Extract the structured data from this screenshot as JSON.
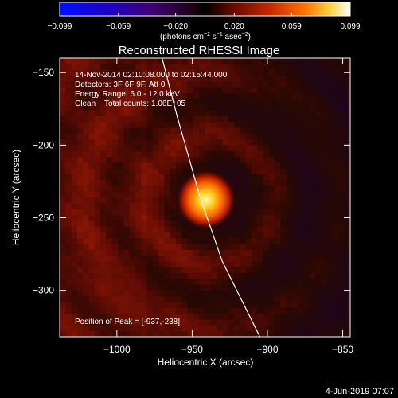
{
  "chart_data": {
    "type": "heatmap",
    "title": "Reconstructed RHESSI Image",
    "colorbar": {
      "ticks": [
        "−0.099",
        "−0.059",
        "−0.020",
        "0.020",
        "0.059",
        "0.099"
      ],
      "tick_values": [
        -0.099,
        -0.059,
        -0.02,
        0.02,
        0.059,
        0.099
      ],
      "range": [
        -0.099,
        0.099
      ],
      "unit_parts": [
        "(photons cm",
        "−2",
        " s",
        "−1",
        " asec",
        "−2",
        ")"
      ]
    },
    "xlabel": "Heliocentric X (arcsec)",
    "ylabel": "Heliocentric Y (arcsec)",
    "xlim": [
      -1038,
      -845
    ],
    "ylim": [
      -332,
      -140
    ],
    "x_ticks": [
      -1000,
      -950,
      -900,
      -850
    ],
    "y_ticks": [
      -150,
      -200,
      -250,
      -300
    ],
    "x_tick_labels": [
      "−1000",
      "−950",
      "−900",
      "−850"
    ],
    "y_tick_labels": [
      "−150",
      "−200",
      "−250",
      "−300"
    ],
    "annotation_lines": [
      "14-Nov-2014 02:10:08.000 to 02:15:44.000",
      "Detectors: 3F 6F 9F, Att 0",
      "Energy Range: 6.0 - 12.0 keV",
      "Clean    Total counts: 1.06E+05"
    ],
    "peak_label": "Position of Peak = [-937,-238]",
    "peak": {
      "x": -937,
      "y": -238
    },
    "limb_points": [
      [
        -970,
        -140
      ],
      [
        -960,
        -180
      ],
      [
        -945,
        -235
      ],
      [
        -930,
        -280
      ],
      [
        -905,
        -332
      ]
    ],
    "colors": {
      "background": "#000000",
      "text": "#ffffff",
      "limb": "#ffffff"
    }
  },
  "footer": {
    "date": "4-Jun-2019 07:07"
  }
}
